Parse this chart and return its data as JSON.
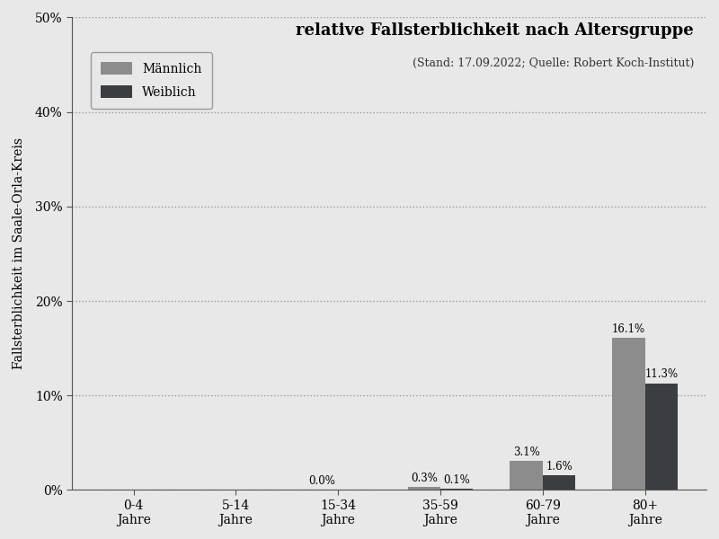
{
  "title": "relative Fallsterblichkeit nach Altersgruppe",
  "subtitle": "(Stand: 17.09.2022; Quelle: Robert Koch-Institut)",
  "ylabel": "Fallsterblichkeit im Saale-Orla-Kreis",
  "categories": [
    "0-4\nJahre",
    "5-14\nJahre",
    "15-34\nJahre",
    "35-59\nJahre",
    "60-79\nJahre",
    "80+\nJahre"
  ],
  "maennlich_values": [
    0.0,
    0.0,
    0.0,
    0.3,
    3.1,
    16.1
  ],
  "weiblich_values": [
    0.0,
    0.0,
    0.0,
    0.1,
    1.6,
    11.3
  ],
  "maennlich_color": "#8c8c8c",
  "weiblich_color": "#3a3d42",
  "maennlich_label": "Männlich",
  "weiblich_label": "Weiblich",
  "ylim": [
    0,
    50
  ],
  "yticks": [
    0,
    10,
    20,
    30,
    40,
    50
  ],
  "ytick_labels": [
    "0%",
    "10%",
    "20%",
    "30%",
    "40%",
    "50%"
  ],
  "background_color": "#e8e8e8",
  "bar_width": 0.32,
  "title_fontsize": 13,
  "subtitle_fontsize": 9,
  "axis_label_fontsize": 10,
  "tick_fontsize": 10,
  "legend_fontsize": 10,
  "value_label_fontsize": 8.5,
  "show_m_labels": [
    false,
    false,
    true,
    true,
    true,
    true
  ],
  "show_w_labels": [
    false,
    false,
    false,
    true,
    true,
    true
  ]
}
